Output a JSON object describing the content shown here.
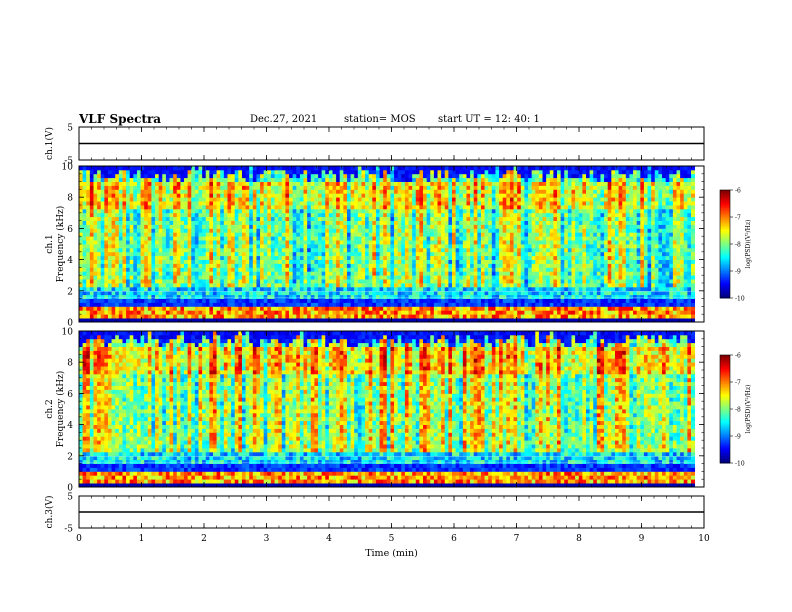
{
  "header": {
    "title": "VLF Spectra",
    "date": "Dec.27, 2021",
    "station": "station= MOS",
    "start": "start  UT =   12: 40: 1"
  },
  "chart_data": {
    "type": "heatmap",
    "x": {
      "label": "Time  (min)",
      "range": [
        0,
        10
      ],
      "ticks": [
        0,
        1,
        2,
        3,
        4,
        5,
        6,
        7,
        8,
        9,
        10
      ],
      "data_end": 9.85
    },
    "panels": [
      {
        "kind": "line",
        "ylabel": "ch.1(V)",
        "ylim": [
          -5,
          5
        ],
        "ytick_labels": [
          "5",
          "-5"
        ],
        "value": 0
      },
      {
        "kind": "spectrogram",
        "ylabel": "ch.1\nFrequency (kHz)",
        "ylim": [
          0,
          10
        ],
        "ytick_labels": [
          "0",
          "2",
          "4",
          "6",
          "8",
          "10"
        ],
        "colorbar": {
          "label": "log(PSD)(V²/Hz)",
          "range": [
            -10,
            -6
          ],
          "tick_labels": [
            "-10",
            "-9",
            "-8",
            "-7",
            "-6"
          ]
        }
      },
      {
        "kind": "spectrogram",
        "ylabel": "ch.2\nFrequency (kHz)",
        "ylim": [
          0,
          10
        ],
        "ytick_labels": [
          "0",
          "2",
          "4",
          "6",
          "8",
          "10"
        ],
        "colorbar": {
          "label": "log(PSD)(V²/Hz)",
          "range": [
            -10,
            -6
          ],
          "tick_labels": [
            "-10",
            "-9",
            "-8",
            "-7",
            "-6"
          ]
        }
      },
      {
        "kind": "line",
        "ylabel": "ch.3(V)",
        "ylim": [
          -5,
          5
        ],
        "ytick_labels": [
          "5",
          "-5"
        ],
        "value": 0
      }
    ]
  }
}
